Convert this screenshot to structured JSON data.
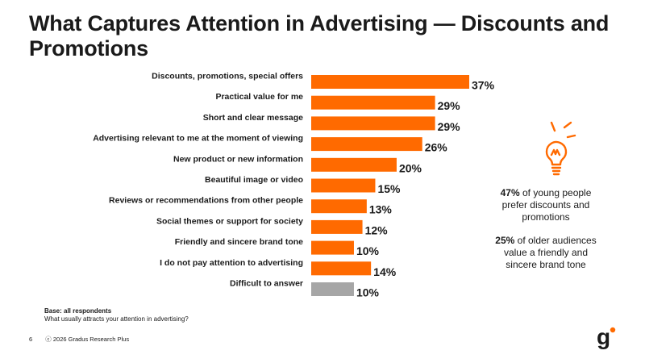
{
  "title": "What Captures Attention in Advertising — Discounts and Promotions",
  "chart_data": {
    "type": "bar",
    "orientation": "horizontal",
    "categories": [
      "Discounts, promotions, special offers",
      "Practical value for me",
      "Short and clear message",
      "Advertising relevant to me at the moment of viewing",
      "New product or new information",
      "Beautiful image or video",
      "Reviews or recommendations from other people",
      "Social themes or support for society",
      "Friendly and sincere brand tone",
      "I do not pay attention to advertising",
      "Difficult to answer"
    ],
    "values": [
      37,
      29,
      29,
      26,
      20,
      15,
      13,
      12,
      10,
      14,
      10
    ],
    "labels": [
      "37%",
      "29%",
      "29%",
      "26%",
      "20%",
      "15%",
      "13%",
      "12%",
      "10%",
      "14%",
      "10%"
    ],
    "colors": [
      "#ff6a00",
      "#ff6a00",
      "#ff6a00",
      "#ff6a00",
      "#ff6a00",
      "#ff6a00",
      "#ff6a00",
      "#ff6a00",
      "#ff6a00",
      "#ff6a00",
      "#a6a6a6"
    ],
    "xlim": [
      0,
      37
    ],
    "grid": false,
    "legend": "none"
  },
  "callout": {
    "icon": "lightbulb-icon",
    "item1_value": "47%",
    "item1_text": " of young people prefer discounts and promotions",
    "item2_value": "25%",
    "item2_text": " of older audiences value a friendly and sincere brand tone"
  },
  "base": {
    "title": "Base: all respondents",
    "question": "What usually attracts your attention in advertising?"
  },
  "footer": {
    "page": "6",
    "copyright": "ⓒ 2026 Gradus Research Plus"
  },
  "logo": {
    "letter": "g"
  },
  "colors": {
    "accent": "#ff6a00",
    "neutral": "#a6a6a6",
    "text": "#1a1a1a"
  }
}
